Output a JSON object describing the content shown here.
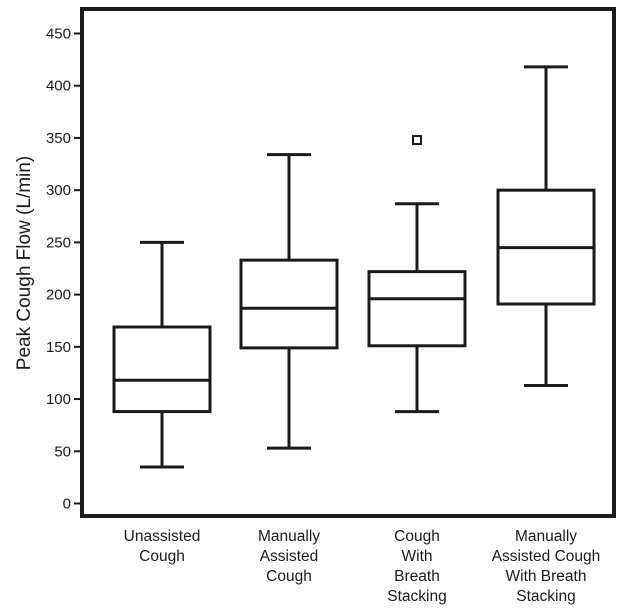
{
  "chart_data": {
    "type": "boxplot",
    "title": "",
    "xlabel": "",
    "ylabel": "Peak Cough Flow (L/min)",
    "ylim": [
      0,
      450
    ],
    "yticks": [
      0,
      50,
      100,
      150,
      200,
      250,
      300,
      350,
      400,
      450
    ],
    "grid": false,
    "legend": "none",
    "box_color": "#1a1a1a",
    "categories": [
      [
        "Unassisted",
        "Cough"
      ],
      [
        "Manually",
        "Assisted",
        "Cough"
      ],
      [
        "Cough",
        "With",
        "Breath",
        "Stacking"
      ],
      [
        "Manually",
        "Assisted Cough",
        "With Breath",
        "Stacking"
      ]
    ],
    "boxes": [
      {
        "min": 35,
        "q1": 88,
        "median": 118,
        "q3": 169,
        "max": 250,
        "outliers": []
      },
      {
        "min": 53,
        "q1": 149,
        "median": 187,
        "q3": 233,
        "max": 334,
        "outliers": []
      },
      {
        "min": 88,
        "q1": 151,
        "median": 196,
        "q3": 222,
        "max": 287,
        "outliers": [
          348
        ]
      },
      {
        "min": 113,
        "q1": 191,
        "median": 245,
        "q3": 300,
        "max": 418,
        "outliers": []
      }
    ]
  }
}
